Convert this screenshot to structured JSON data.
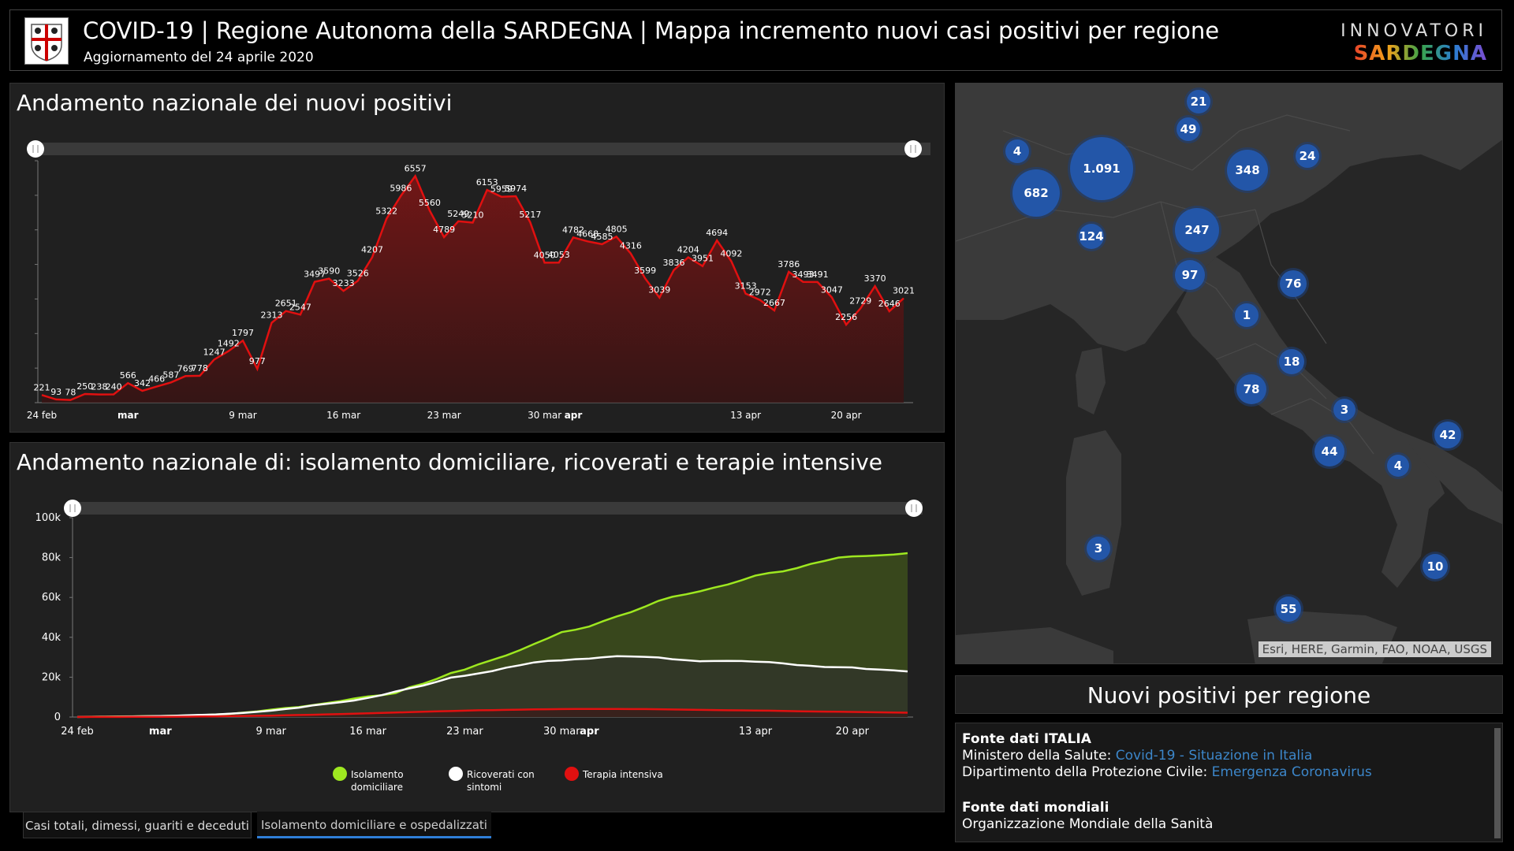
{
  "header": {
    "title": "COVID-19 | Regione Autonoma della SARDEGNA | Mappa incremento nuovi casi positivi per regione",
    "subtitle": "Aggiornamento del 24 aprile 2020",
    "brand_top": "INNOVATORI",
    "brand_bottom": "SARDEGNA"
  },
  "chart1": {
    "title": "Andamento nazionale dei nuovi positivi",
    "xticks": [
      "24 feb",
      "mar",
      "9 mar",
      "16 mar",
      "23 mar",
      "30 mar",
      "apr",
      "13 apr",
      "20 apr"
    ]
  },
  "chart2": {
    "title": "Andamento nazionale di: isolamento domiciliare, ricoverati e terapie intensive",
    "yticks": [
      "100k",
      "80k",
      "60k",
      "40k",
      "20k",
      "0"
    ],
    "xticks": [
      "24 feb",
      "mar",
      "9 mar",
      "16 mar",
      "23 mar",
      "30 mar",
      "apr",
      "13 apr",
      "20 apr"
    ],
    "legend": [
      {
        "label1": "Isolamento",
        "label2": "domiciliare",
        "color": "#9ee820"
      },
      {
        "label1": "Ricoverati con",
        "label2": "sintomi",
        "color": "#ffffff"
      },
      {
        "label1": "Terapia intensiva",
        "label2": "",
        "color": "#e11010"
      }
    ]
  },
  "chart_data": [
    {
      "type": "line",
      "title": "Andamento nazionale dei nuovi positivi",
      "x": [
        "24 feb",
        "25 feb",
        "26 feb",
        "27 feb",
        "28 feb",
        "29 feb",
        "1 mar",
        "2 mar",
        "3 mar",
        "4 mar",
        "5 mar",
        "6 mar",
        "7 mar",
        "8 mar",
        "9 mar",
        "10 mar",
        "11 mar",
        "12 mar",
        "13 mar",
        "14 mar",
        "15 mar",
        "16 mar",
        "17 mar",
        "18 mar",
        "19 mar",
        "20 mar",
        "21 mar",
        "22 mar",
        "23 mar",
        "24 mar",
        "25 mar",
        "26 mar",
        "27 mar",
        "28 mar",
        "29 mar",
        "30 mar",
        "31 mar",
        "1 apr",
        "2 apr",
        "3 apr",
        "4 apr",
        "5 apr",
        "6 apr",
        "7 apr",
        "8 apr",
        "9 apr",
        "10 apr",
        "11 apr",
        "12 apr",
        "13 apr",
        "14 apr",
        "15 apr",
        "16 apr",
        "17 apr",
        "18 apr",
        "19 apr",
        "20 apr",
        "21 apr",
        "22 apr",
        "23 apr",
        "24 apr"
      ],
      "series": [
        {
          "values": [
            221,
            93,
            78,
            250,
            238,
            240,
            566,
            342,
            466,
            587,
            769,
            778,
            1247,
            1492,
            1797,
            977,
            2313,
            2651,
            2547,
            3497,
            3590,
            3233,
            3526,
            4207,
            5322,
            5986,
            6557,
            5560,
            4789,
            5249,
            5210,
            6153,
            5959,
            5974,
            5217,
            4050,
            4053,
            4782,
            4668,
            4585,
            4805,
            4316,
            3599,
            3039,
            3836,
            4204,
            3951,
            4694,
            4092,
            3153,
            2972,
            2667,
            3786,
            3493,
            3491,
            3047,
            2256,
            2729,
            3370,
            2646,
            3021
          ]
        }
      ],
      "xticks": [
        "24 feb",
        "mar",
        "9 mar",
        "16 mar",
        "23 mar",
        "30 mar",
        "apr",
        "13 apr",
        "20 apr"
      ],
      "ylim": [
        0,
        7000
      ],
      "color": "#e11010"
    },
    {
      "type": "area",
      "title": "Andamento nazionale di: isolamento domiciliare, ricoverati e terapie intensive",
      "x": [
        "24 feb",
        "25 feb",
        "26 feb",
        "27 feb",
        "28 feb",
        "29 feb",
        "1 mar",
        "2 mar",
        "3 mar",
        "4 mar",
        "5 mar",
        "6 mar",
        "7 mar",
        "8 mar",
        "9 mar",
        "10 mar",
        "11 mar",
        "12 mar",
        "13 mar",
        "14 mar",
        "15 mar",
        "16 mar",
        "17 mar",
        "18 mar",
        "19 mar",
        "20 mar",
        "21 mar",
        "22 mar",
        "23 mar",
        "24 mar",
        "25 mar",
        "26 mar",
        "27 mar",
        "28 mar",
        "29 mar",
        "30 mar",
        "31 mar",
        "1 apr",
        "2 apr",
        "3 apr",
        "4 apr",
        "5 apr",
        "6 apr",
        "7 apr",
        "8 apr",
        "9 apr",
        "10 apr",
        "11 apr",
        "12 apr",
        "13 apr",
        "14 apr",
        "15 apr",
        "16 apr",
        "17 apr",
        "18 apr",
        "19 apr",
        "20 apr",
        "21 apr",
        "22 apr",
        "23 apr",
        "24 apr"
      ],
      "ylim": [
        0,
        100000
      ],
      "yticks": [
        "0",
        "20k",
        "40k",
        "60k",
        "80k",
        "100k"
      ],
      "series": [
        {
          "name": "Isolamento domiciliare",
          "color": "#9ee820",
          "values": [
            90,
            160,
            210,
            280,
            340,
            420,
            500,
            640,
            800,
            1000,
            1300,
            1600,
            2200,
            2800,
            3700,
            4500,
            5000,
            6000,
            7000,
            8000,
            9300,
            10300,
            11000,
            12000,
            14900,
            16700,
            19200,
            22100,
            23800,
            26500,
            28700,
            30900,
            33600,
            36600,
            39500,
            42600,
            43800,
            45400,
            48100,
            50500,
            52600,
            55300,
            58300,
            60300,
            61600,
            63100,
            64900,
            66500,
            68600,
            71000,
            72300,
            73100,
            74700,
            76800,
            78300,
            80000,
            80600,
            80800,
            81100,
            81500,
            82200
          ]
        },
        {
          "name": "Ricoverati con sintomi",
          "color": "#ffffff",
          "values": [
            50,
            110,
            160,
            210,
            300,
            400,
            500,
            640,
            850,
            1100,
            1300,
            1700,
            2100,
            2600,
            3200,
            4000,
            4700,
            5800,
            6600,
            7400,
            8300,
            9600,
            11000,
            12800,
            14400,
            15800,
            17700,
            19800,
            20700,
            21900,
            23100,
            24800,
            26000,
            27400,
            28200,
            28400,
            29000,
            29300,
            30000,
            30500,
            30400,
            30200,
            29900,
            29000,
            28500,
            28000,
            28100,
            28200,
            28100,
            27800,
            27600,
            26900,
            26100,
            25700,
            25100,
            25000,
            24900,
            24100,
            23800,
            23400,
            22900
          ]
        },
        {
          "name": "Terapia intensiva",
          "color": "#e11010",
          "values": [
            30,
            30,
            30,
            40,
            60,
            70,
            80,
            140,
            200,
            300,
            350,
            460,
            570,
            650,
            730,
            880,
            1030,
            1150,
            1330,
            1520,
            1670,
            1850,
            2060,
            2260,
            2500,
            2660,
            2860,
            3000,
            3200,
            3390,
            3490,
            3610,
            3730,
            3850,
            3910,
            3980,
            4020,
            4030,
            4050,
            4070,
            4000,
            3990,
            3900,
            3790,
            3700,
            3610,
            3500,
            3380,
            3340,
            3260,
            3190,
            3080,
            2940,
            2810,
            2730,
            2630,
            2570,
            2470,
            2380,
            2270,
            2180
          ]
        }
      ],
      "legend": "bottom"
    }
  ],
  "map": {
    "attribution": "Esri, HERE, Garmin, FAO, NOAA, USGS",
    "markers": [
      "21",
      "49",
      "4",
      "1.091",
      "348",
      "24",
      "682",
      "124",
      "247",
      "97",
      "76",
      "1",
      "18",
      "78",
      "3",
      "44",
      "42",
      "4",
      "3",
      "10",
      "55"
    ]
  },
  "regioni": {
    "title": "Nuovi positivi per regione"
  },
  "fonti": {
    "italia_heading": "Fonte dati ITALIA",
    "line1_prefix": "Ministero della Salute: ",
    "line1_link": "Covid-19 - Situazione in Italia",
    "line2_prefix": "Dipartimento della Protezione Civile: ",
    "line2_link": "Emergenza Coronavirus",
    "mondiali_heading": "Fonte dati mondiali",
    "line3": "Organizzazione Mondiale della Sanità"
  },
  "tabs": [
    {
      "label": "Casi totali, dimessi, guariti e deceduti",
      "active": false
    },
    {
      "label": "Isolamento domiciliare e ospedalizzati",
      "active": true
    }
  ]
}
